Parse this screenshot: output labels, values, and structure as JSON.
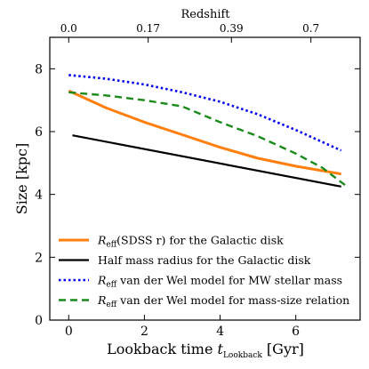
{
  "chart_data": {
    "type": "line",
    "xlabel": "Lookback time ",
    "xlabel_var": "t",
    "xlabel_sub": "Lookback",
    "xlabel_unit": " [Gyr]",
    "ylabel": "Size [kpc]",
    "top_axis_label": "Redshift",
    "xlim": [
      -0.5,
      7.7
    ],
    "ylim": [
      0,
      9
    ],
    "x_ticks": [
      0,
      2,
      4,
      6
    ],
    "y_ticks": [
      0,
      2,
      4,
      6,
      8
    ],
    "top_ticks": [
      {
        "x": 0.0,
        "label": "0.0"
      },
      {
        "x": 2.1,
        "label": "0.17"
      },
      {
        "x": 4.3,
        "label": "0.39"
      },
      {
        "x": 6.4,
        "label": "0.7"
      }
    ],
    "grid": false,
    "legend_placement": "lower-left",
    "series": [
      {
        "name_prefix": "R",
        "name_sub": "eff",
        "name_suffix": "(SDSS r) for the Galactic disk",
        "color": "#ff7f0e",
        "style": "solid",
        "width": 3,
        "x": [
          0.0,
          1,
          2,
          3,
          4,
          5,
          6,
          7.2
        ],
        "y": [
          7.3,
          6.75,
          6.3,
          5.9,
          5.5,
          5.15,
          4.9,
          4.65
        ]
      },
      {
        "name_prefix": "",
        "name_sub": "",
        "name_suffix": "Half mass radius for the Galactic disk",
        "color": "#000000",
        "style": "solid",
        "width": 2.2,
        "x": [
          0.1,
          7.2
        ],
        "y": [
          5.88,
          4.25
        ]
      },
      {
        "name_prefix": "R",
        "name_sub": "eff",
        "name_suffix": " van der Wel model for MW stellar mass",
        "color": "#0000ee",
        "style": "dotted",
        "width": 2.6,
        "x": [
          0.0,
          1,
          2,
          3,
          4,
          5,
          6,
          7.2
        ],
        "y": [
          7.8,
          7.68,
          7.5,
          7.25,
          6.95,
          6.55,
          6.05,
          5.4
        ]
      },
      {
        "name_prefix": "R",
        "name_sub": "eff",
        "name_suffix": " van der Wel model for mass-size relation",
        "color": "#1a8a1a",
        "style": "dashed",
        "width": 2.4,
        "x": [
          0.0,
          1,
          2,
          3,
          4,
          5,
          6,
          6.7,
          7.3
        ],
        "y": [
          7.25,
          7.15,
          7.0,
          6.8,
          6.3,
          5.85,
          5.3,
          4.85,
          4.3
        ]
      }
    ]
  }
}
